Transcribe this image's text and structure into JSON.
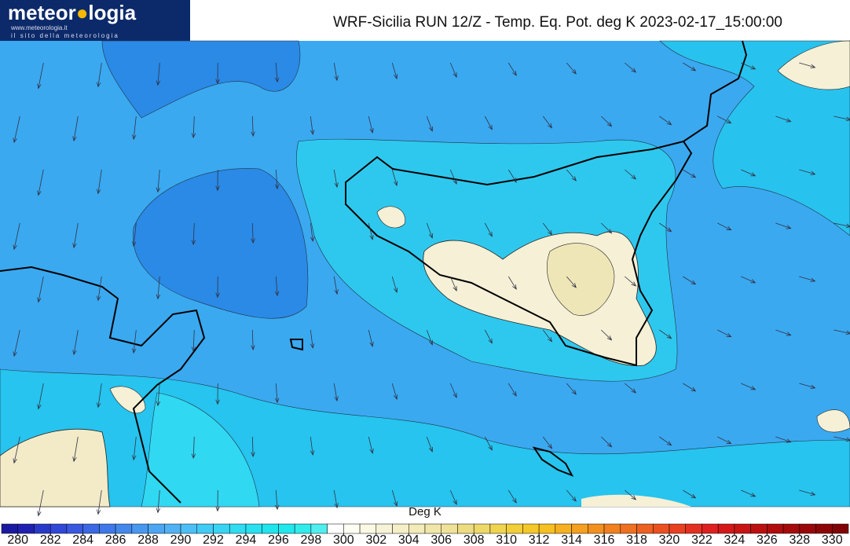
{
  "header": {
    "logo": "meteor",
    "logo_end": "logia",
    "logo_url": "www.meteorologia.it",
    "logo_tagline": "il sito della meteorologia",
    "title": "WRF-Sicilia RUN 12/Z - Temp. Eq. Pot. deg K 2023-02-17_15:00:00"
  },
  "colorbar": {
    "label": "Deg K",
    "ticks": [
      280,
      282,
      284,
      286,
      288,
      290,
      292,
      294,
      296,
      298,
      300,
      302,
      304,
      306,
      308,
      310,
      312,
      314,
      316,
      318,
      320,
      322,
      324,
      326,
      328,
      330
    ],
    "colors": [
      "#1a1aa0",
      "#2020b0",
      "#2a3ac8",
      "#3048d8",
      "#3858e0",
      "#3c68e4",
      "#3f78e8",
      "#4488ec",
      "#4898f0",
      "#4ca6f2",
      "#50b2f4",
      "#4cc0f6",
      "#40ccf6",
      "#38d4f4",
      "#30dcf2",
      "#28e0f0",
      "#20e4ee",
      "#20e8ec",
      "#30ecec",
      "#50eeee",
      "#ffffff",
      "#fffff4",
      "#fbf8e4",
      "#f7f3d8",
      "#f5efc8",
      "#f3ebb8",
      "#f1e6a8",
      "#efe198",
      "#eedc80",
      "#eed868",
      "#f0d450",
      "#f2ce38",
      "#f4c828",
      "#f6c020",
      "#f6b020",
      "#f4a020",
      "#f29020",
      "#f08020",
      "#ee7020",
      "#ec6020",
      "#ea5020",
      "#e84020",
      "#e43020",
      "#de2020",
      "#d41818",
      "#c81414",
      "#bc1010",
      "#b00c0c",
      "#a40a0a",
      "#980808",
      "#8c0606",
      "#800404"
    ]
  }
}
